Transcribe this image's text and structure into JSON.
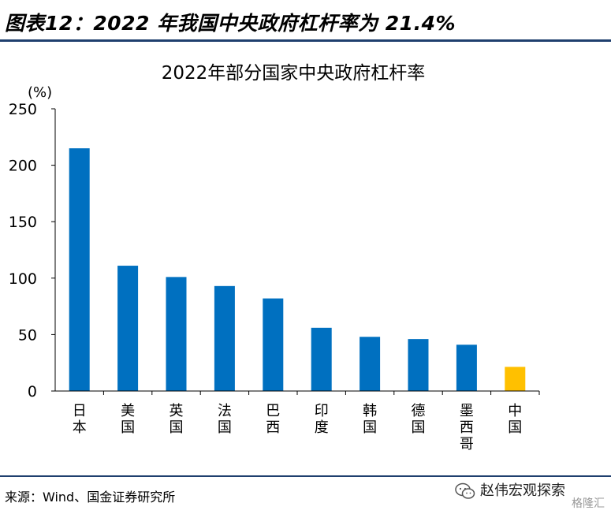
{
  "figure_title": "图表12：2022 年我国中央政府杠杆率为 21.4%",
  "source_note": "来源：Wind、国金证券研究所",
  "watermark": {
    "name": "赵伟宏观探索",
    "sub": "格隆汇",
    "icon": "wechat-icon"
  },
  "colors": {
    "bar": "#0070C0",
    "highlight": "#FFC000",
    "rule": "#1f3f6e",
    "axis": "#000000"
  },
  "chart_data": {
    "type": "bar",
    "title": "2022年部分国家中央政府杠杆率",
    "ylabel": "(%)",
    "xlabel": "",
    "ylim": [
      0,
      250
    ],
    "yticks": [
      0,
      50,
      100,
      150,
      200,
      250
    ],
    "grid": false,
    "categories": [
      "日本",
      "美国",
      "英国",
      "法国",
      "巴西",
      "印度",
      "韩国",
      "德国",
      "墨西哥",
      "中国"
    ],
    "values": [
      215,
      111,
      101,
      93,
      82,
      56,
      48,
      46,
      41,
      21.4
    ],
    "highlight_index": 9
  }
}
